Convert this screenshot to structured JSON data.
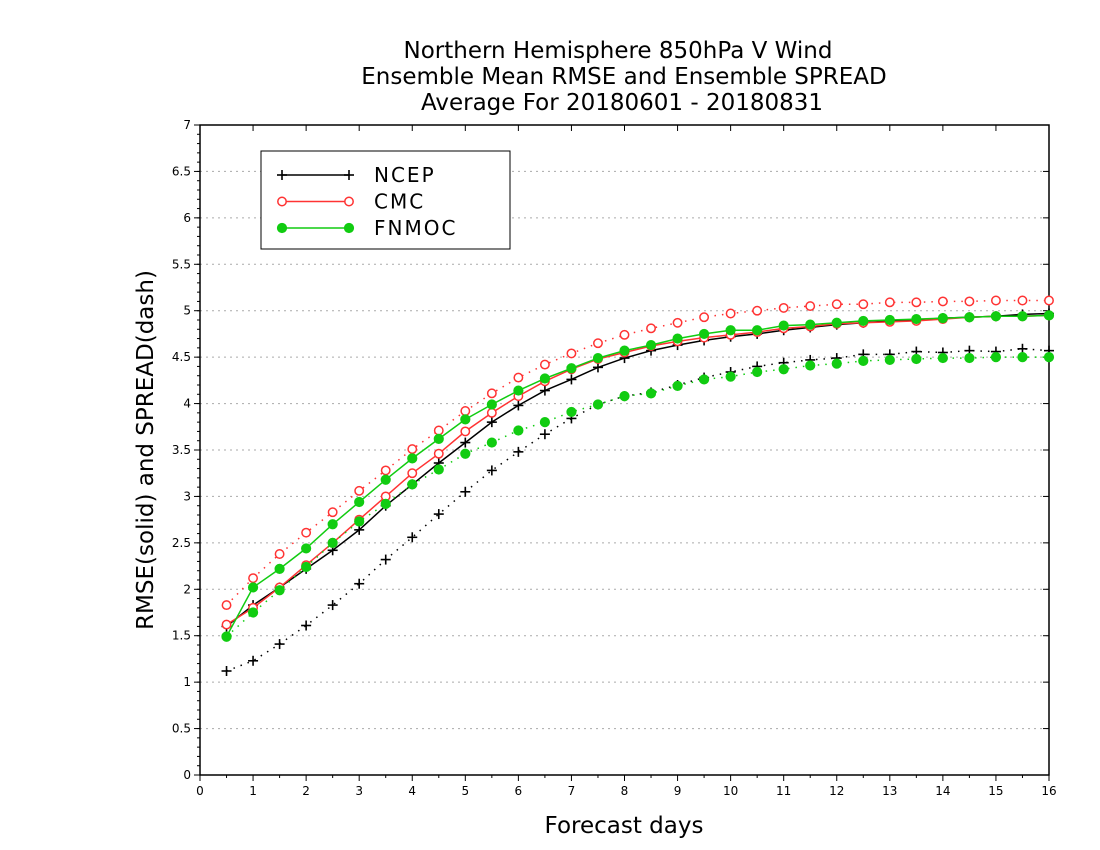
{
  "chart_data": {
    "type": "line",
    "title": [
      "Northern Hemisphere 850hPa V Wind",
      "Ensemble Mean RMSE and Ensemble SPREAD",
      "Average For 20180601 - 20180831"
    ],
    "xlabel": "Forecast days",
    "ylabel": "RMSE(solid) and SPREAD(dash)",
    "xlim": [
      0,
      16
    ],
    "ylim": [
      0,
      7
    ],
    "x_ticks": [
      "0",
      "1",
      "2",
      "3",
      "4",
      "5",
      "6",
      "7",
      "8",
      "9",
      "10",
      "11",
      "12",
      "13",
      "14",
      "15",
      "16"
    ],
    "y_ticks": [
      "0",
      "0.5",
      "1",
      "1.5",
      "2",
      "2.5",
      "3",
      "3.5",
      "4",
      "4.5",
      "5",
      "5.5",
      "6",
      "6.5",
      "7"
    ],
    "grid": "horizontal dotted",
    "legend_position": "top-left",
    "x": [
      0.5,
      1,
      1.5,
      2,
      2.5,
      3,
      3.5,
      4,
      4.5,
      5,
      5.5,
      6,
      6.5,
      7,
      7.5,
      8,
      8.5,
      9,
      9.5,
      10,
      10.5,
      11,
      11.5,
      12,
      12.5,
      13,
      13.5,
      14,
      14.5,
      15,
      15.5,
      16
    ],
    "series": [
      {
        "name": "NCEP",
        "color": "#000000",
        "marker": "plus",
        "rmse": [
          1.6,
          1.83,
          2.02,
          2.22,
          2.42,
          2.64,
          2.9,
          3.13,
          3.36,
          3.58,
          3.8,
          3.98,
          4.14,
          4.26,
          4.39,
          4.49,
          4.57,
          4.63,
          4.68,
          4.72,
          4.75,
          4.79,
          4.82,
          4.85,
          4.87,
          4.89,
          4.9,
          4.92,
          4.93,
          4.94,
          4.96,
          4.97
        ],
        "spread": [
          1.12,
          1.23,
          1.41,
          1.61,
          1.83,
          2.06,
          2.32,
          2.56,
          2.81,
          3.05,
          3.28,
          3.48,
          3.67,
          3.84,
          3.99,
          4.08,
          4.12,
          4.2,
          4.28,
          4.34,
          4.4,
          4.44,
          4.47,
          4.49,
          4.53,
          4.53,
          4.56,
          4.55,
          4.57,
          4.56,
          4.59,
          4.57
        ]
      },
      {
        "name": "CMC",
        "color": "#ff3333",
        "marker": "open-circle",
        "rmse": [
          1.62,
          1.8,
          2.02,
          2.26,
          2.5,
          2.75,
          3.0,
          3.25,
          3.46,
          3.7,
          3.9,
          4.08,
          4.24,
          4.37,
          4.48,
          4.55,
          4.62,
          4.67,
          4.71,
          4.74,
          4.77,
          4.81,
          4.83,
          4.86,
          4.87,
          4.88,
          4.89,
          4.91,
          4.93,
          4.94,
          4.94,
          4.95
        ],
        "spread": [
          1.83,
          2.12,
          2.38,
          2.61,
          2.83,
          3.06,
          3.28,
          3.51,
          3.71,
          3.92,
          4.11,
          4.28,
          4.42,
          4.54,
          4.65,
          4.74,
          4.81,
          4.87,
          4.93,
          4.97,
          5.0,
          5.03,
          5.05,
          5.07,
          5.07,
          5.09,
          5.09,
          5.1,
          5.1,
          5.11,
          5.11,
          5.11
        ]
      },
      {
        "name": "FNMOC",
        "color": "#11cc11",
        "marker": "filled-circle",
        "rmse": [
          1.49,
          2.02,
          2.22,
          2.44,
          2.7,
          2.94,
          3.18,
          3.41,
          3.62,
          3.83,
          3.99,
          4.14,
          4.27,
          4.38,
          4.49,
          4.57,
          4.63,
          4.7,
          4.75,
          4.79,
          4.79,
          4.84,
          4.85,
          4.87,
          4.89,
          4.9,
          4.91,
          4.92,
          4.93,
          4.94,
          4.94,
          4.95
        ],
        "spread": [
          1.49,
          1.75,
          1.99,
          2.24,
          2.5,
          2.73,
          2.92,
          3.13,
          3.29,
          3.46,
          3.58,
          3.71,
          3.8,
          3.91,
          3.99,
          4.08,
          4.11,
          4.19,
          4.26,
          4.29,
          4.34,
          4.37,
          4.41,
          4.43,
          4.46,
          4.47,
          4.48,
          4.49,
          4.49,
          4.5,
          4.5,
          4.5
        ]
      }
    ]
  }
}
